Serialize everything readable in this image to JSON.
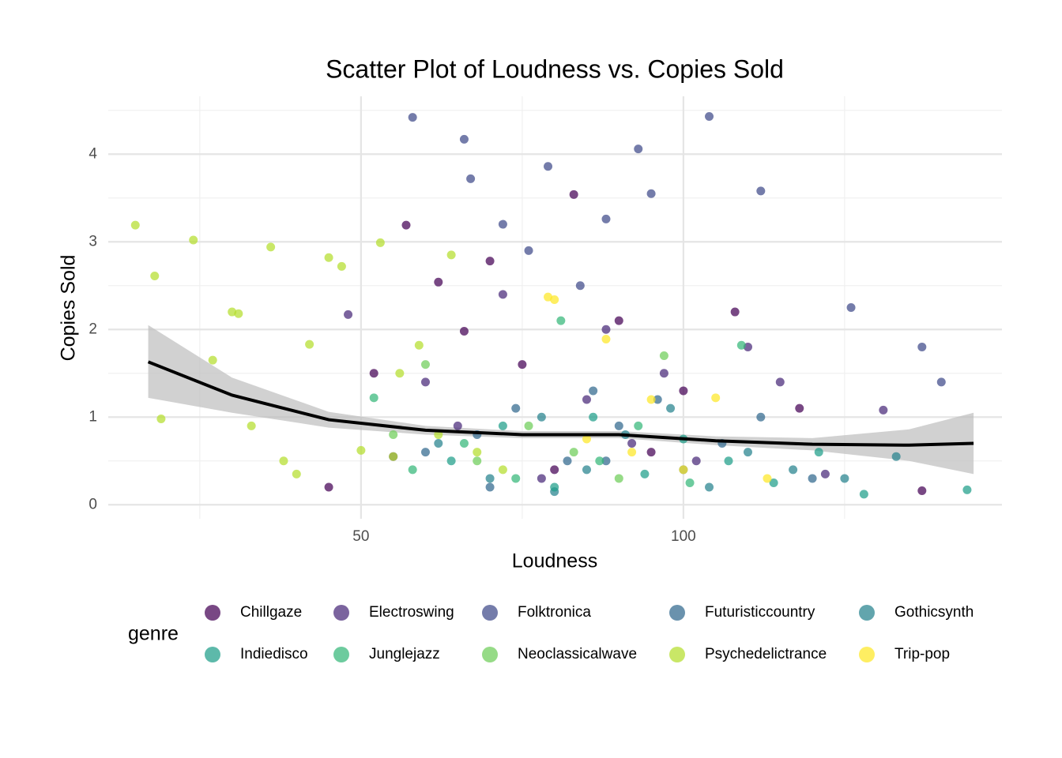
{
  "chart_data": {
    "type": "scatter",
    "title": "Scatter Plot of Loudness vs. Copies Sold",
    "x_label": "Loudness",
    "y_label": "Copies Sold",
    "legend_title": "genre",
    "xlim": [
      10.8,
      149.4
    ],
    "ylim": [
      -0.16,
      4.66
    ],
    "xticks": [
      50,
      100
    ],
    "yticks": [
      0,
      1,
      2,
      3,
      4
    ],
    "x_minor_ticks": [
      25,
      75,
      125
    ],
    "y_minor_ticks": [
      0.5,
      1.5,
      2.5,
      3.5,
      4.5
    ],
    "grid": true,
    "legend_position": "bottom",
    "series": [
      {
        "name": "Chillgaze",
        "color": "#440154",
        "x": [
          57,
          62,
          66,
          70,
          75,
          80,
          83,
          90,
          95,
          100,
          108,
          118,
          137,
          45,
          52
        ],
        "values": [
          3.19,
          2.54,
          1.98,
          2.78,
          1.6,
          0.4,
          3.54,
          2.1,
          0.6,
          1.3,
          2.2,
          1.1,
          0.16,
          0.2,
          1.5
        ]
      },
      {
        "name": "Electroswing",
        "color": "#482878",
        "x": [
          60,
          65,
          72,
          78,
          85,
          88,
          92,
          97,
          102,
          110,
          115,
          122,
          131,
          48,
          55
        ],
        "values": [
          1.4,
          0.9,
          2.4,
          0.3,
          1.2,
          2.0,
          0.7,
          1.5,
          0.5,
          1.8,
          1.4,
          0.35,
          1.08,
          2.17,
          0.55
        ]
      },
      {
        "name": "Folktronica",
        "color": "#3E4A89",
        "x": [
          58,
          66,
          67,
          76,
          79,
          88,
          93,
          95,
          104,
          112,
          126,
          137,
          140,
          72,
          84
        ],
        "values": [
          4.42,
          4.17,
          3.72,
          2.9,
          3.86,
          3.26,
          4.06,
          3.55,
          4.43,
          3.58,
          2.25,
          1.8,
          1.4,
          3.2,
          2.5
        ]
      },
      {
        "name": "Futuristiccountry",
        "color": "#31688E",
        "x": [
          60,
          68,
          74,
          82,
          86,
          90,
          96,
          100,
          106,
          112,
          120,
          70,
          88
        ],
        "values": [
          0.6,
          0.8,
          1.1,
          0.5,
          1.3,
          0.9,
          1.2,
          0.4,
          0.7,
          1.0,
          0.3,
          0.2,
          0.5
        ]
      },
      {
        "name": "Gothicsynth",
        "color": "#26828E",
        "x": [
          62,
          70,
          78,
          85,
          91,
          98,
          104,
          110,
          117,
          125,
          133,
          80
        ],
        "values": [
          0.7,
          0.3,
          1.0,
          0.4,
          0.8,
          1.1,
          0.2,
          0.6,
          0.4,
          0.3,
          0.55,
          0.15
        ]
      },
      {
        "name": "Indiedisco",
        "color": "#1F9E89",
        "x": [
          64,
          72,
          80,
          86,
          94,
          100,
          107,
          114,
          121,
          128,
          144
        ],
        "values": [
          0.5,
          0.9,
          0.2,
          1.0,
          0.35,
          0.75,
          0.5,
          0.25,
          0.6,
          0.12,
          0.17
        ]
      },
      {
        "name": "Junglejazz",
        "color": "#35B779",
        "x": [
          52,
          58,
          66,
          74,
          81,
          87,
          93,
          101,
          109
        ],
        "values": [
          1.22,
          0.4,
          0.7,
          0.3,
          2.1,
          0.5,
          0.9,
          0.25,
          1.82
        ]
      },
      {
        "name": "Neoclassicalwave",
        "color": "#6DCD59",
        "x": [
          55,
          60,
          68,
          76,
          83,
          90,
          97
        ],
        "values": [
          0.8,
          1.6,
          0.5,
          0.9,
          0.6,
          0.3,
          1.7
        ]
      },
      {
        "name": "Psychedelictrance",
        "color": "#B4DE2C",
        "x": [
          15,
          18,
          19,
          24,
          27,
          30,
          31,
          36,
          38,
          42,
          45,
          47,
          50,
          53,
          56,
          59,
          62,
          64,
          68,
          72,
          33,
          40,
          55
        ],
        "values": [
          3.19,
          2.61,
          0.98,
          3.02,
          1.65,
          2.2,
          2.18,
          2.94,
          0.5,
          1.83,
          2.82,
          2.72,
          0.62,
          2.99,
          1.5,
          1.82,
          0.8,
          2.85,
          0.6,
          0.4,
          0.9,
          0.35,
          0.55
        ]
      },
      {
        "name": "Trip-pop",
        "color": "#FDE725",
        "x": [
          79,
          80,
          88,
          95,
          100,
          105,
          113,
          85,
          92
        ],
        "values": [
          2.37,
          2.34,
          1.89,
          1.2,
          0.4,
          1.22,
          0.3,
          0.75,
          0.6
        ]
      }
    ],
    "smooth": {
      "color": "#000000",
      "band_color": "#bdbdbd",
      "x": [
        17,
        30,
        45,
        60,
        75,
        90,
        105,
        120,
        135,
        145
      ],
      "values": [
        1.63,
        1.25,
        0.97,
        0.85,
        0.8,
        0.8,
        0.73,
        0.69,
        0.68,
        0.7
      ],
      "lower": [
        1.22,
        1.05,
        0.88,
        0.8,
        0.76,
        0.76,
        0.68,
        0.62,
        0.5,
        0.35
      ],
      "upper": [
        2.05,
        1.45,
        1.06,
        0.9,
        0.84,
        0.84,
        0.78,
        0.76,
        0.86,
        1.05
      ]
    }
  }
}
